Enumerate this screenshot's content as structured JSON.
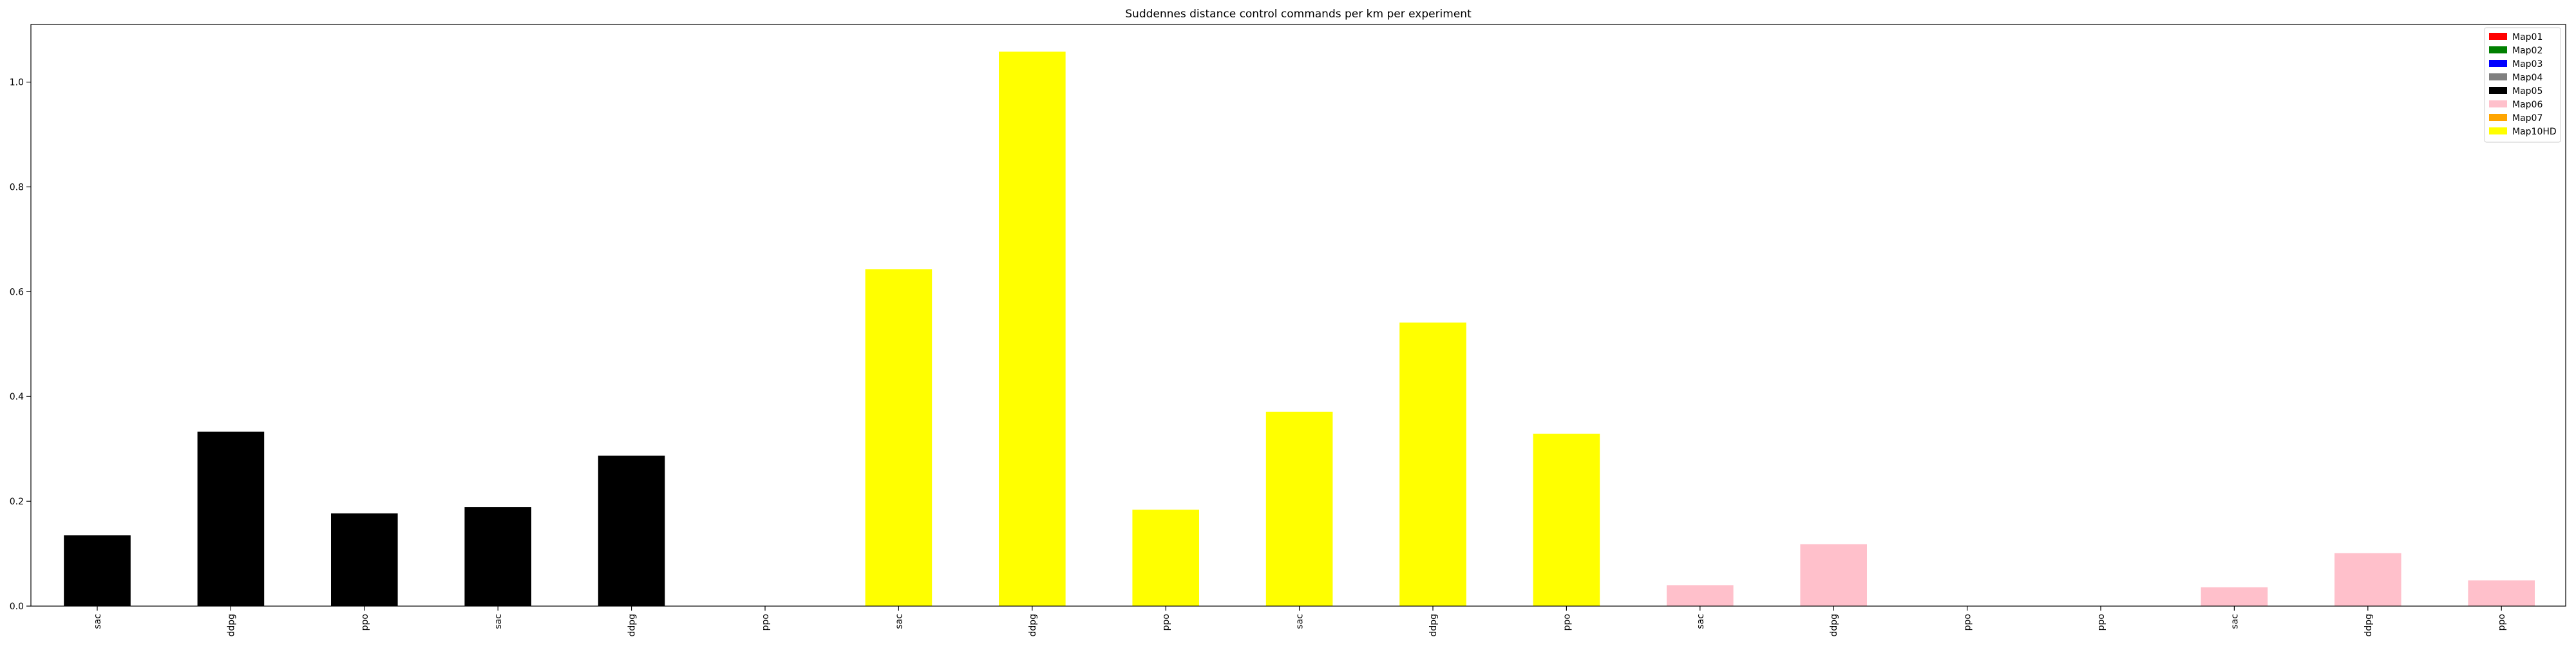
{
  "chart_data": {
    "type": "bar",
    "title": "Suddennes distance control commands per km per experiment",
    "xlabel": "",
    "ylabel": "",
    "ylim": [
      0,
      1.11
    ],
    "yticks": [
      "0.0",
      "0.2",
      "0.4",
      "0.6",
      "0.8",
      "1.0"
    ],
    "grid": false,
    "legend_position": "top-right",
    "categories": [
      "sac",
      "ddpg",
      "ppo",
      "sac",
      "ddpg",
      "ppo",
      "sac",
      "ddpg",
      "ppo",
      "sac",
      "ddpg",
      "ppo",
      "sac",
      "ddpg",
      "ppo",
      "ppo",
      "sac",
      "ddpg",
      "ppo"
    ],
    "values": [
      0.135,
      0.333,
      0.177,
      0.189,
      0.287,
      0.0,
      0.643,
      1.058,
      0.184,
      0.371,
      0.541,
      0.329,
      0.04,
      0.118,
      0.0,
      0.0,
      0.036,
      0.101,
      0.049
    ],
    "bar_colors": [
      "#000000",
      "#000000",
      "#000000",
      "#000000",
      "#000000",
      "#000000",
      "#ffff00",
      "#ffff00",
      "#ffff00",
      "#ffff00",
      "#ffff00",
      "#ffff00",
      "#ffc0cb",
      "#ffc0cb",
      "#ffc0cb",
      "#ffc0cb",
      "#ffc0cb",
      "#ffc0cb",
      "#ffc0cb"
    ],
    "legend": [
      {
        "label": "Map01",
        "color": "#ff0000"
      },
      {
        "label": "Map02",
        "color": "#008000"
      },
      {
        "label": "Map03",
        "color": "#0000ff"
      },
      {
        "label": "Map04",
        "color": "#808080"
      },
      {
        "label": "Map05",
        "color": "#000000"
      },
      {
        "label": "Map06",
        "color": "#ffc0cb"
      },
      {
        "label": "Map07",
        "color": "#ffa500"
      },
      {
        "label": "Map10HD",
        "color": "#ffff00"
      }
    ]
  }
}
